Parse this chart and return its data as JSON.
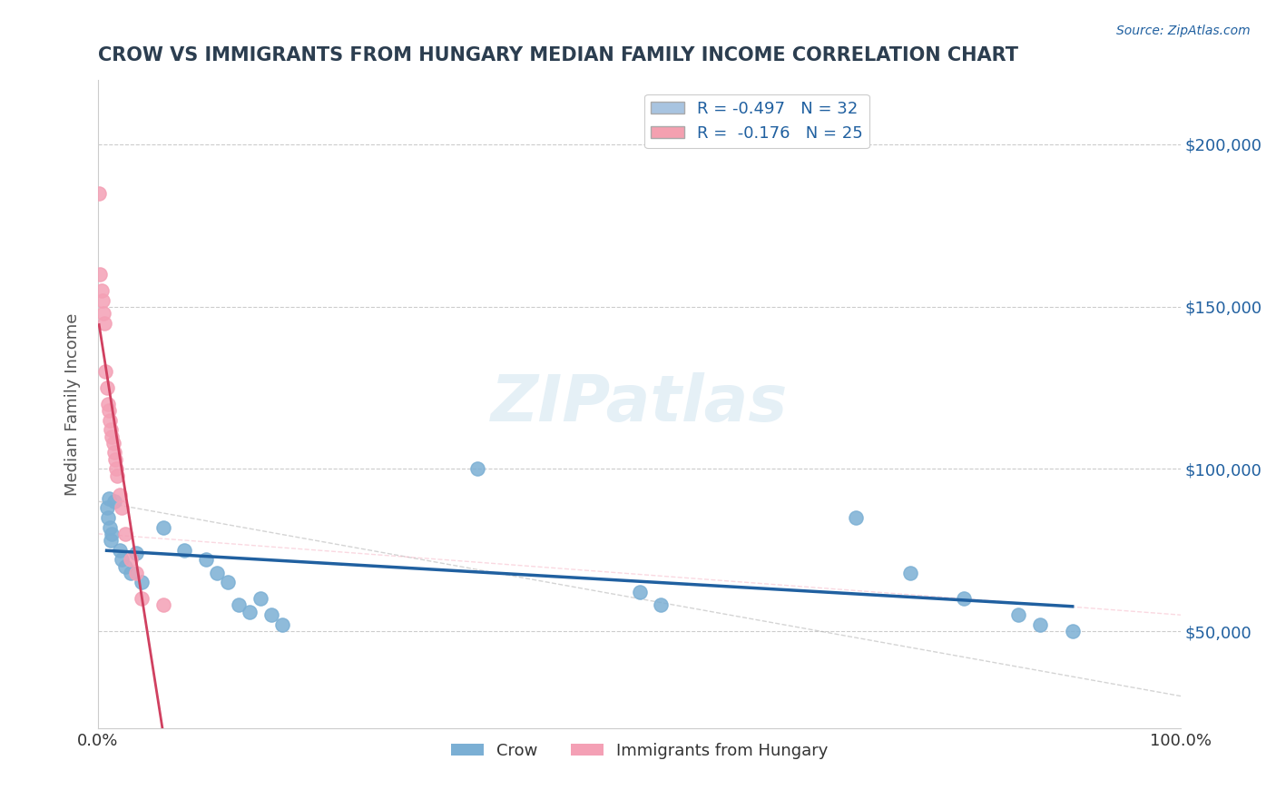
{
  "title": "CROW VS IMMIGRANTS FROM HUNGARY MEDIAN FAMILY INCOME CORRELATION CHART",
  "source": "Source: ZipAtlas.com",
  "xlabel": "",
  "ylabel": "Median Family Income",
  "xlim": [
    0.0,
    1.0
  ],
  "ylim": [
    20000,
    220000
  ],
  "yticks": [
    50000,
    100000,
    150000,
    200000
  ],
  "ytick_labels": [
    "$50,000",
    "$100,000",
    "$150,000",
    "$200,000"
  ],
  "xticks": [
    0.0,
    0.2,
    0.4,
    0.6,
    0.8,
    1.0
  ],
  "xtick_labels": [
    "0.0%",
    "",
    "",
    "",
    "",
    "100.0%"
  ],
  "legend_entries": [
    {
      "label": "R = -0.497   N = 32",
      "color": "#a8c4e0"
    },
    {
      "label": "R =  -0.176   N = 25",
      "color": "#f4a0b0"
    }
  ],
  "crow_color": "#7bafd4",
  "hungary_color": "#f4a0b5",
  "crow_line_color": "#2060a0",
  "hungary_line_color": "#d04060",
  "crow_scatter": [
    [
      0.008,
      88000
    ],
    [
      0.009,
      85000
    ],
    [
      0.01,
      91000
    ],
    [
      0.011,
      82000
    ],
    [
      0.012,
      78000
    ],
    [
      0.013,
      80000
    ],
    [
      0.015,
      90000
    ],
    [
      0.02,
      75000
    ],
    [
      0.022,
      72000
    ],
    [
      0.025,
      70000
    ],
    [
      0.03,
      68000
    ],
    [
      0.035,
      74000
    ],
    [
      0.04,
      65000
    ],
    [
      0.06,
      82000
    ],
    [
      0.08,
      75000
    ],
    [
      0.1,
      72000
    ],
    [
      0.11,
      68000
    ],
    [
      0.12,
      65000
    ],
    [
      0.13,
      58000
    ],
    [
      0.14,
      56000
    ],
    [
      0.15,
      60000
    ],
    [
      0.16,
      55000
    ],
    [
      0.17,
      52000
    ],
    [
      0.35,
      100000
    ],
    [
      0.5,
      62000
    ],
    [
      0.52,
      58000
    ],
    [
      0.7,
      85000
    ],
    [
      0.75,
      68000
    ],
    [
      0.8,
      60000
    ],
    [
      0.85,
      55000
    ],
    [
      0.87,
      52000
    ],
    [
      0.9,
      50000
    ]
  ],
  "hungary_scatter": [
    [
      0.001,
      185000
    ],
    [
      0.002,
      160000
    ],
    [
      0.003,
      155000
    ],
    [
      0.004,
      152000
    ],
    [
      0.005,
      148000
    ],
    [
      0.006,
      145000
    ],
    [
      0.007,
      130000
    ],
    [
      0.008,
      125000
    ],
    [
      0.009,
      120000
    ],
    [
      0.01,
      118000
    ],
    [
      0.011,
      115000
    ],
    [
      0.012,
      112000
    ],
    [
      0.013,
      110000
    ],
    [
      0.014,
      108000
    ],
    [
      0.015,
      105000
    ],
    [
      0.016,
      103000
    ],
    [
      0.017,
      100000
    ],
    [
      0.018,
      98000
    ],
    [
      0.02,
      92000
    ],
    [
      0.022,
      88000
    ],
    [
      0.025,
      80000
    ],
    [
      0.03,
      72000
    ],
    [
      0.035,
      68000
    ],
    [
      0.04,
      60000
    ],
    [
      0.06,
      58000
    ]
  ],
  "background_color": "#ffffff",
  "grid_color": "#cccccc",
  "watermark": "ZIPatlas",
  "title_color": "#2c3e50",
  "axis_label_color": "#555555",
  "tick_label_color_right": "#2060a0",
  "legend_text_color": "#2060a0"
}
